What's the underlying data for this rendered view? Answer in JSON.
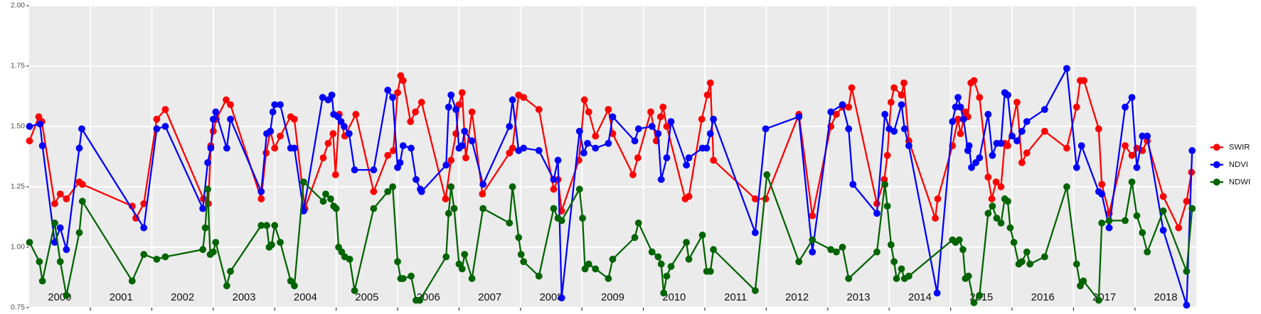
{
  "chart_data": {
    "type": "line",
    "xlim": [
      2000,
      2019
    ],
    "xgrid": [
      2001,
      2002,
      2003,
      2004,
      2005,
      2006,
      2007,
      2008,
      2009,
      2010,
      2011,
      2012,
      2013,
      2014,
      2015,
      2016,
      2017,
      2018
    ],
    "xticks": [
      {
        "value": 2000.5,
        "label": "2000"
      },
      {
        "value": 2001.5,
        "label": "2001"
      },
      {
        "value": 2002.5,
        "label": "2002"
      },
      {
        "value": 2003.5,
        "label": "2003"
      },
      {
        "value": 2004.5,
        "label": "2004"
      },
      {
        "value": 2005.5,
        "label": "2005"
      },
      {
        "value": 2006.5,
        "label": "2006"
      },
      {
        "value": 2007.5,
        "label": "2007"
      },
      {
        "value": 2008.5,
        "label": "2008"
      },
      {
        "value": 2009.5,
        "label": "2009"
      },
      {
        "value": 2010.5,
        "label": "2010"
      },
      {
        "value": 2011.5,
        "label": "2011"
      },
      {
        "value": 2012.5,
        "label": "2012"
      },
      {
        "value": 2013.5,
        "label": "2013"
      },
      {
        "value": 2014.5,
        "label": "2014"
      },
      {
        "value": 2015.5,
        "label": "2015"
      },
      {
        "value": 2016.5,
        "label": "2016"
      },
      {
        "value": 2017.5,
        "label": "2017"
      },
      {
        "value": 2018.5,
        "label": "2018"
      }
    ],
    "ylim": [
      0.75,
      2.0
    ],
    "yticks": [
      {
        "value": 0.75,
        "label": "0.75"
      },
      {
        "value": 1.0,
        "label": "1.00"
      },
      {
        "value": 1.25,
        "label": "1.25"
      },
      {
        "value": 1.5,
        "label": "1.50"
      },
      {
        "value": 1.75,
        "label": "1.75"
      },
      {
        "value": 2.0,
        "label": "2.00"
      }
    ],
    "grid": true,
    "legend": "right",
    "series": [
      {
        "name": "SWIR",
        "color": "#ff0000",
        "x": [
          2000.01,
          2000.16,
          2000.21,
          2000.42,
          2000.51,
          2000.61,
          2000.82,
          2000.87,
          2001.68,
          2001.74,
          2001.87,
          2002.08,
          2002.22,
          2002.84,
          2002.92,
          2002.96,
          2003.0,
          2003.05,
          2003.21,
          2003.28,
          2003.78,
          2003.86,
          2003.93,
          2004.0,
          2004.09,
          2004.26,
          2004.32,
          2004.49,
          2004.79,
          2004.87,
          2004.95,
          2004.99,
          2005.05,
          2005.14,
          2005.32,
          2005.61,
          2005.84,
          2005.93,
          2006.0,
          2006.05,
          2006.09,
          2006.21,
          2006.29,
          2006.39,
          2006.78,
          2006.87,
          2006.95,
          2007.0,
          2007.05,
          2007.11,
          2007.21,
          2007.38,
          2007.82,
          2007.87,
          2007.97,
          2008.05,
          2008.3,
          2008.54,
          2008.61,
          2008.67,
          2008.95,
          2009.04,
          2009.11,
          2009.22,
          2009.43,
          2009.5,
          2009.83,
          2009.91,
          2010.12,
          2010.21,
          2010.28,
          2010.32,
          2010.38,
          2010.68,
          2010.74,
          2010.95,
          2011.04,
          2011.09,
          2011.14,
          2011.82,
          2011.99,
          2012.53,
          2012.75,
          2013.05,
          2013.14,
          2013.24,
          2013.34,
          2013.39,
          2013.8,
          2013.92,
          2013.97,
          2014.03,
          2014.08,
          2014.2,
          2014.24,
          2014.32,
          2014.75,
          2014.79,
          2015.03,
          2015.12,
          2015.16,
          2015.24,
          2015.28,
          2015.33,
          2015.38,
          2015.47,
          2015.61,
          2015.67,
          2015.74,
          2015.82,
          2015.88,
          2015.93,
          2016.08,
          2016.16,
          2016.24,
          2016.53,
          2016.89,
          2017.05,
          2017.11,
          2017.17,
          2017.41,
          2017.46,
          2017.58,
          2017.84,
          2017.95,
          2018.03,
          2018.12,
          2018.2,
          2018.46,
          2018.71,
          2018.84,
          2018.92
        ],
        "values": [
          1.44,
          1.54,
          1.52,
          1.18,
          1.22,
          1.2,
          1.27,
          1.26,
          1.17,
          1.12,
          1.18,
          1.53,
          1.57,
          1.2,
          1.18,
          1.42,
          1.48,
          1.53,
          1.61,
          1.59,
          1.2,
          1.39,
          1.48,
          1.41,
          1.46,
          1.54,
          1.53,
          1.16,
          1.37,
          1.43,
          1.47,
          1.3,
          1.55,
          1.46,
          1.55,
          1.23,
          1.38,
          1.4,
          1.64,
          1.71,
          1.69,
          1.52,
          1.56,
          1.6,
          1.2,
          1.36,
          1.47,
          1.59,
          1.64,
          1.37,
          1.56,
          1.22,
          1.39,
          1.41,
          1.63,
          1.62,
          1.57,
          1.24,
          1.28,
          1.15,
          1.36,
          1.61,
          1.56,
          1.46,
          1.57,
          1.47,
          1.3,
          1.37,
          1.56,
          1.44,
          1.54,
          1.58,
          1.5,
          1.2,
          1.21,
          1.53,
          1.63,
          1.68,
          1.36,
          1.2,
          1.2,
          1.55,
          1.13,
          1.5,
          1.55,
          1.58,
          1.58,
          1.66,
          1.18,
          1.28,
          1.38,
          1.6,
          1.66,
          1.63,
          1.68,
          1.44,
          1.12,
          1.2,
          1.42,
          1.53,
          1.47,
          1.56,
          1.54,
          1.68,
          1.69,
          1.62,
          1.29,
          1.2,
          1.27,
          1.25,
          1.43,
          1.42,
          1.6,
          1.35,
          1.39,
          1.48,
          1.41,
          1.58,
          1.69,
          1.69,
          1.49,
          1.26,
          1.14,
          1.42,
          1.38,
          1.41,
          1.4,
          1.44,
          1.21,
          1.08,
          1.19,
          1.31
        ]
      },
      {
        "name": "NDVI",
        "color": "#0000ff",
        "x": [
          2000.01,
          2000.18,
          2000.22,
          2000.42,
          2000.51,
          2000.61,
          2000.82,
          2000.86,
          2001.87,
          2002.08,
          2002.22,
          2002.83,
          2002.91,
          2002.96,
          2003.0,
          2003.04,
          2003.22,
          2003.28,
          2003.78,
          2003.87,
          2003.93,
          2003.97,
          2004.0,
          2004.09,
          2004.26,
          2004.32,
          2004.47,
          2004.78,
          2004.87,
          2004.93,
          2004.96,
          2005.03,
          2005.08,
          2005.13,
          2005.21,
          2005.3,
          2005.61,
          2005.84,
          2005.92,
          2006.0,
          2006.04,
          2006.09,
          2006.22,
          2006.3,
          2006.37,
          2006.39,
          2006.79,
          2006.83,
          2006.87,
          2006.95,
          2007.0,
          2007.05,
          2007.09,
          2007.21,
          2007.39,
          2007.82,
          2007.87,
          2007.97,
          2008.05,
          2008.3,
          2008.54,
          2008.61,
          2008.67,
          2008.96,
          2009.03,
          2009.09,
          2009.22,
          2009.43,
          2009.5,
          2009.86,
          2009.92,
          2010.14,
          2010.24,
          2010.29,
          2010.38,
          2010.45,
          2010.7,
          2010.74,
          2010.96,
          2011.03,
          2011.09,
          2011.14,
          2011.82,
          2011.99,
          2012.53,
          2012.75,
          2013.05,
          2013.24,
          2013.34,
          2013.41,
          2013.8,
          2013.93,
          2014.0,
          2014.08,
          2014.2,
          2014.25,
          2014.32,
          2014.78,
          2015.03,
          2015.08,
          2015.12,
          2015.16,
          2015.21,
          2015.28,
          2015.3,
          2015.34,
          2015.41,
          2015.47,
          2015.61,
          2015.68,
          2015.75,
          2015.82,
          2015.88,
          2015.93,
          2016.0,
          2016.08,
          2016.16,
          2016.24,
          2016.53,
          2016.89,
          2017.05,
          2017.13,
          2017.41,
          2017.46,
          2017.58,
          2017.84,
          2017.95,
          2018.03,
          2018.12,
          2018.2,
          2018.46,
          2018.84,
          2018.93
        ],
        "values": [
          1.5,
          1.51,
          1.42,
          1.02,
          1.08,
          0.99,
          1.41,
          1.49,
          1.08,
          1.49,
          1.5,
          1.16,
          1.35,
          1.41,
          1.53,
          1.56,
          1.41,
          1.53,
          1.23,
          1.47,
          1.48,
          1.56,
          1.59,
          1.59,
          1.41,
          1.41,
          1.15,
          1.62,
          1.61,
          1.63,
          1.55,
          1.54,
          1.52,
          1.5,
          1.47,
          1.32,
          1.32,
          1.65,
          1.62,
          1.33,
          1.35,
          1.42,
          1.41,
          1.28,
          1.24,
          1.23,
          1.34,
          1.58,
          1.63,
          1.57,
          1.41,
          1.42,
          1.48,
          1.44,
          1.26,
          1.5,
          1.61,
          1.4,
          1.41,
          1.4,
          1.28,
          1.36,
          0.79,
          1.48,
          1.39,
          1.43,
          1.41,
          1.43,
          1.54,
          1.44,
          1.49,
          1.5,
          1.47,
          1.28,
          1.37,
          1.52,
          1.34,
          1.37,
          1.41,
          1.41,
          1.47,
          1.53,
          1.06,
          1.49,
          1.54,
          0.98,
          1.56,
          1.59,
          1.49,
          1.26,
          1.14,
          1.55,
          1.49,
          1.48,
          1.59,
          1.49,
          1.42,
          0.81,
          1.52,
          1.58,
          1.62,
          1.58,
          1.53,
          1.4,
          1.42,
          1.33,
          1.35,
          1.37,
          1.55,
          1.38,
          1.43,
          1.43,
          1.64,
          1.63,
          1.46,
          1.44,
          1.48,
          1.52,
          1.57,
          1.74,
          1.33,
          1.42,
          1.23,
          1.22,
          1.08,
          1.58,
          1.62,
          1.33,
          1.46,
          1.46,
          1.07,
          0.76,
          1.4
        ]
      },
      {
        "name": "NDWI",
        "color": "#006400",
        "x": [
          2000.01,
          2000.17,
          2000.22,
          2000.42,
          2000.51,
          2000.61,
          2000.82,
          2000.87,
          2001.68,
          2001.87,
          2002.08,
          2002.22,
          2002.83,
          2002.87,
          2002.91,
          2002.95,
          2003.0,
          2003.04,
          2003.22,
          2003.28,
          2003.78,
          2003.87,
          2003.91,
          2003.95,
          2004.0,
          2004.09,
          2004.26,
          2004.32,
          2004.47,
          2004.79,
          2004.83,
          2004.91,
          2004.96,
          2005.0,
          2005.04,
          2005.09,
          2005.14,
          2005.22,
          2005.3,
          2005.61,
          2005.84,
          2005.92,
          2006.0,
          2006.05,
          2006.09,
          2006.22,
          2006.3,
          2006.36,
          2006.79,
          2006.83,
          2006.87,
          2006.92,
          2007.0,
          2007.05,
          2007.09,
          2007.21,
          2007.39,
          2007.82,
          2007.87,
          2007.97,
          2008.01,
          2008.05,
          2008.3,
          2008.54,
          2008.61,
          2008.67,
          2008.96,
          2009.01,
          2009.05,
          2009.11,
          2009.22,
          2009.43,
          2009.5,
          2009.86,
          2009.92,
          2010.14,
          2010.24,
          2010.29,
          2010.33,
          2010.38,
          2010.45,
          2010.7,
          2010.74,
          2010.96,
          2011.03,
          2011.09,
          2011.14,
          2011.82,
          2012.01,
          2012.53,
          2012.75,
          2013.05,
          2013.14,
          2013.24,
          2013.34,
          2013.8,
          2013.93,
          2013.97,
          2014.03,
          2014.08,
          2014.12,
          2014.2,
          2014.25,
          2014.32,
          2015.03,
          2015.08,
          2015.14,
          2015.2,
          2015.24,
          2015.29,
          2015.38,
          2015.47,
          2015.61,
          2015.68,
          2015.75,
          2015.82,
          2015.88,
          2015.93,
          2015.97,
          2016.03,
          2016.11,
          2016.16,
          2016.24,
          2016.29,
          2016.53,
          2016.89,
          2017.05,
          2017.11,
          2017.16,
          2017.41,
          2017.46,
          2017.58,
          2017.84,
          2017.95,
          2018.03,
          2018.12,
          2018.2,
          2018.46,
          2018.84,
          2018.93
        ],
        "values": [
          1.02,
          0.94,
          0.86,
          1.1,
          0.94,
          0.8,
          1.06,
          1.19,
          0.86,
          0.97,
          0.95,
          0.96,
          0.99,
          1.08,
          1.24,
          0.97,
          0.98,
          1.02,
          0.84,
          0.9,
          1.09,
          1.09,
          1.0,
          1.01,
          1.09,
          1.02,
          0.86,
          0.84,
          1.27,
          1.19,
          1.22,
          1.2,
          1.17,
          1.16,
          1.0,
          0.98,
          0.96,
          0.95,
          0.82,
          1.16,
          1.23,
          1.25,
          0.94,
          0.87,
          0.87,
          0.88,
          0.78,
          0.78,
          0.96,
          1.14,
          1.25,
          1.16,
          0.93,
          0.91,
          0.97,
          0.87,
          1.16,
          1.1,
          1.25,
          1.04,
          0.97,
          0.94,
          0.88,
          1.16,
          1.12,
          1.11,
          1.24,
          1.12,
          0.91,
          0.93,
          0.91,
          0.87,
          0.95,
          1.04,
          1.1,
          0.98,
          0.96,
          0.93,
          0.81,
          0.88,
          0.92,
          1.02,
          0.95,
          1.05,
          0.9,
          0.9,
          0.99,
          0.82,
          1.3,
          0.94,
          1.03,
          0.99,
          0.98,
          1.0,
          0.87,
          0.98,
          1.26,
          1.17,
          1.01,
          0.94,
          0.87,
          0.91,
          0.87,
          0.88,
          1.03,
          1.02,
          1.03,
          0.99,
          0.87,
          0.88,
          0.77,
          0.8,
          1.14,
          1.17,
          1.12,
          1.1,
          1.2,
          1.19,
          1.08,
          1.02,
          0.93,
          0.94,
          0.98,
          0.93,
          0.96,
          1.25,
          0.93,
          0.84,
          0.86,
          0.78,
          1.1,
          1.11,
          1.11,
          1.27,
          1.13,
          1.06,
          0.98,
          1.15,
          0.9,
          1.16
        ]
      }
    ]
  }
}
